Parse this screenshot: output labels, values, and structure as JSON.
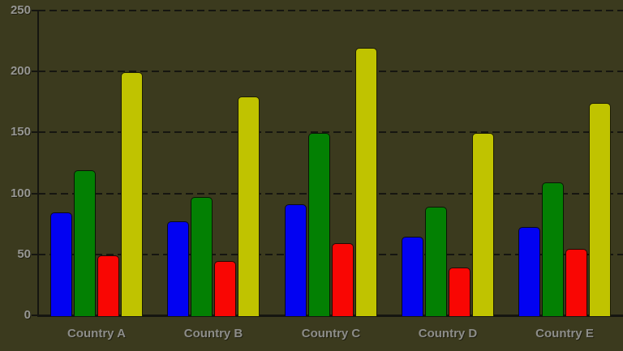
{
  "chart_data": {
    "type": "bar",
    "title": "",
    "xlabel": "",
    "ylabel": "",
    "categories": [
      "Country A",
      "Country B",
      "Country C",
      "Country D",
      "Country E"
    ],
    "series": [
      {
        "name": "blue",
        "color": "#0202f2",
        "values": [
          85,
          78,
          92,
          65,
          73
        ]
      },
      {
        "name": "green",
        "color": "#038003",
        "values": [
          120,
          98,
          150,
          90,
          110
        ]
      },
      {
        "name": "red",
        "color": "#f90603",
        "values": [
          50,
          45,
          60,
          40,
          55
        ]
      },
      {
        "name": "yellow",
        "color": "#c0c300",
        "values": [
          200,
          180,
          220,
          150,
          175
        ]
      }
    ],
    "ylim": [
      0,
      250
    ],
    "yticks": [
      0,
      50,
      100,
      150,
      200,
      250
    ],
    "grid": "horizontal-dashed",
    "legend_position": "none",
    "colors": {
      "background": "#3b3a1e",
      "axis": "#151510",
      "labels": "#929290"
    }
  }
}
